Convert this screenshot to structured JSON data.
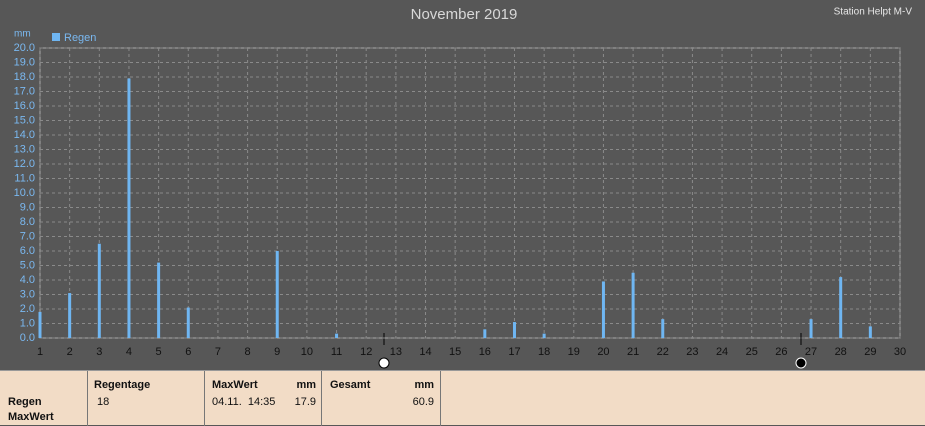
{
  "chart_data": {
    "type": "bar",
    "title": "November 2019",
    "station": "Station Helpt M-V",
    "y_label": "mm",
    "x": [
      1,
      2,
      3,
      4,
      5,
      6,
      9,
      11,
      16,
      17,
      18,
      20,
      21,
      22,
      27,
      28,
      29
    ],
    "series": [
      {
        "name": "Regen",
        "color": "#6fb6f2",
        "values": [
          1.8,
          3.1,
          6.5,
          17.9,
          5.2,
          2.1,
          6.0,
          0.3,
          0.6,
          1.1,
          0.3,
          3.9,
          4.5,
          1.3,
          1.3,
          4.2,
          0.8
        ]
      }
    ],
    "xlim": [
      1,
      30
    ],
    "xticks": [
      1,
      2,
      3,
      4,
      5,
      6,
      7,
      8,
      9,
      10,
      11,
      12,
      13,
      14,
      15,
      16,
      17,
      18,
      19,
      20,
      21,
      22,
      23,
      24,
      25,
      26,
      27,
      28,
      29,
      30
    ],
    "ylim": [
      0,
      20
    ],
    "yticks": [
      {
        "value": 0,
        "label": "0.0"
      },
      {
        "value": 1,
        "label": "1.0"
      },
      {
        "value": 2,
        "label": "2.0"
      },
      {
        "value": 3,
        "label": "3.0"
      },
      {
        "value": 4,
        "label": "4.0"
      },
      {
        "value": 5,
        "label": "5.0"
      },
      {
        "value": 6,
        "label": "6.0"
      },
      {
        "value": 7,
        "label": "7.0"
      },
      {
        "value": 8,
        "label": "8.0"
      },
      {
        "value": 9,
        "label": "9.0"
      },
      {
        "value": 10,
        "label": "10.0"
      },
      {
        "value": 11,
        "label": "11.0"
      },
      {
        "value": 12,
        "label": "12.0"
      },
      {
        "value": 13,
        "label": "13.0"
      },
      {
        "value": 14,
        "label": "14.0"
      },
      {
        "value": 15,
        "label": "15.0"
      },
      {
        "value": 16,
        "label": "16.0"
      },
      {
        "value": 17,
        "label": "17.0"
      },
      {
        "value": 18,
        "label": "18.0"
      },
      {
        "value": 19,
        "label": "19.0"
      },
      {
        "value": 20,
        "label": "20.0"
      }
    ],
    "grid": true
  },
  "summary": {
    "row_labels": [
      "Regen",
      "MaxWert"
    ],
    "regentage": {
      "header": "Regentage",
      "value": "18"
    },
    "maxwert": {
      "header": "MaxWert",
      "unit": "mm",
      "time": "04.11.  14:35",
      "value": "17.9"
    },
    "gesamt": {
      "header": "Gesamt",
      "unit": "mm",
      "value": "60.9"
    }
  }
}
